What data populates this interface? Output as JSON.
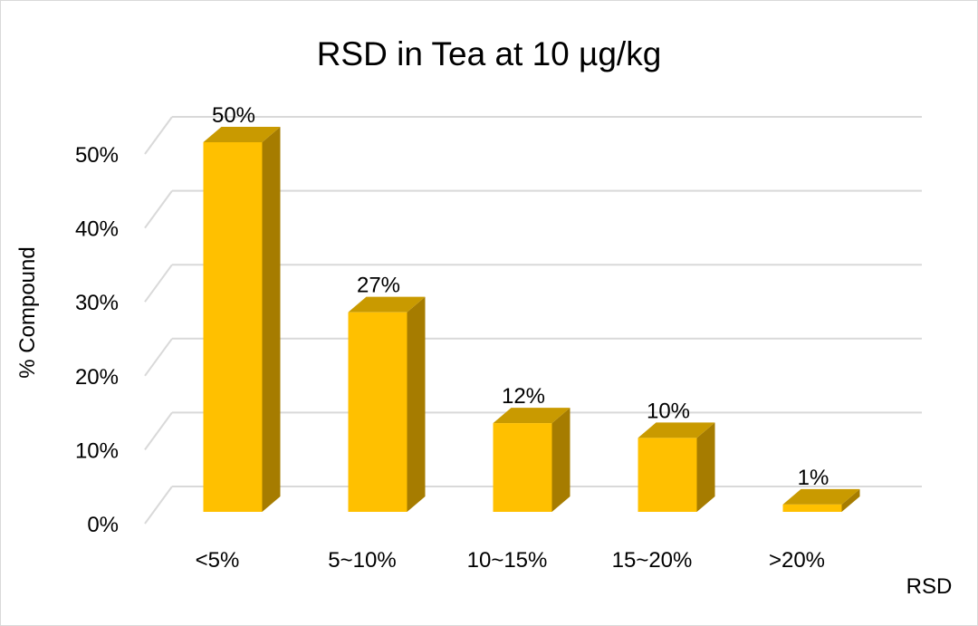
{
  "chart_data": {
    "type": "bar",
    "style": "3d-column",
    "title": "RSD in Tea at 10 µg/kg",
    "xlabel": "RSD",
    "ylabel": "% Compound",
    "categories": [
      "<5%",
      "5~10%",
      "10~15%",
      "15~20%",
      ">20%"
    ],
    "values": [
      50,
      27,
      12,
      10,
      1
    ],
    "data_labels": [
      "50%",
      "27%",
      "12%",
      "10%",
      "1%"
    ],
    "yticks": [
      "0%",
      "10%",
      "20%",
      "30%",
      "40%",
      "50%"
    ],
    "ylim": [
      0,
      60
    ],
    "grid": true,
    "legend": "none",
    "colors": {
      "front": "#FFC000",
      "top": "#C99A00",
      "side": "#A67C00",
      "grid": "#D9D9D9"
    }
  }
}
